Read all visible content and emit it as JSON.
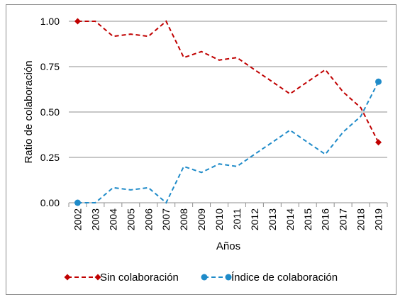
{
  "chart_data": {
    "type": "line",
    "title": "",
    "xlabel": "Años",
    "ylabel": "Ratio de colaboración",
    "ylim": [
      0,
      1
    ],
    "yticks": [
      "0.00",
      "0.25",
      "0.50",
      "0.75",
      "1.00"
    ],
    "grid": "horizontal",
    "legend_position": "bottom",
    "categories": [
      "2002",
      "2003",
      "2004",
      "2005",
      "2006",
      "2007",
      "2008",
      "2009",
      "2010",
      "2011",
      "2012",
      "2013",
      "2014",
      "2015",
      "2016",
      "2017",
      "2018",
      "2019"
    ],
    "series": [
      {
        "name": "Sin colaboración",
        "color": "#c00000",
        "dash": "dashed",
        "marker": "diamond",
        "values": [
          1.0,
          1.0,
          0.917,
          0.929,
          0.917,
          1.0,
          0.8,
          0.833,
          0.786,
          0.8,
          0.733,
          0.667,
          0.6,
          0.667,
          0.733,
          0.611,
          0.524,
          0.333
        ]
      },
      {
        "name": "Índice de colaboración",
        "color": "#1f8bc9",
        "dash": "dashed",
        "marker": "circle",
        "values": [
          0.0,
          0.0,
          0.083,
          0.071,
          0.083,
          0.0,
          0.2,
          0.167,
          0.214,
          0.2,
          0.267,
          0.333,
          0.4,
          0.333,
          0.267,
          0.389,
          0.476,
          0.667
        ]
      }
    ]
  }
}
